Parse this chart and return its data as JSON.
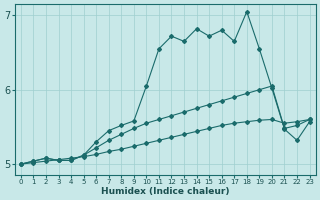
{
  "xlabel": "Humidex (Indice chaleur)",
  "bg_color": "#c8e8e8",
  "grid_color": "#9fcfcf",
  "line_color": "#1a6b6b",
  "xlim": [
    -0.5,
    23.5
  ],
  "ylim": [
    4.85,
    7.15
  ],
  "yticks": [
    5,
    6,
    7
  ],
  "xticks": [
    0,
    1,
    2,
    3,
    4,
    5,
    6,
    7,
    8,
    9,
    10,
    11,
    12,
    13,
    14,
    15,
    16,
    17,
    18,
    19,
    20,
    21,
    22,
    23
  ],
  "line1_x": [
    0,
    1,
    2,
    3,
    4,
    5,
    6,
    7,
    8,
    9,
    10,
    11,
    12,
    13,
    14,
    15,
    16,
    17,
    18,
    19,
    20,
    21,
    22,
    23
  ],
  "line1_y": [
    5.0,
    5.02,
    5.04,
    5.06,
    5.08,
    5.1,
    5.13,
    5.17,
    5.2,
    5.24,
    5.28,
    5.32,
    5.36,
    5.4,
    5.44,
    5.48,
    5.52,
    5.55,
    5.57,
    5.59,
    5.6,
    5.55,
    5.57,
    5.6
  ],
  "line2_x": [
    0,
    1,
    2,
    3,
    4,
    5,
    6,
    7,
    8,
    9,
    10,
    11,
    12,
    13,
    14,
    15,
    16,
    17,
    18,
    19,
    20,
    21,
    22,
    23
  ],
  "line2_y": [
    5.0,
    5.04,
    5.08,
    5.05,
    5.05,
    5.12,
    5.22,
    5.32,
    5.4,
    5.48,
    5.55,
    5.6,
    5.65,
    5.7,
    5.75,
    5.8,
    5.85,
    5.9,
    5.95,
    6.0,
    6.05,
    5.48,
    5.52,
    5.6
  ],
  "line3_x": [
    0,
    1,
    2,
    3,
    4,
    5,
    6,
    7,
    8,
    9,
    10,
    11,
    12,
    13,
    14,
    15,
    16,
    17,
    18,
    19,
    20,
    21,
    22,
    23
  ],
  "line3_y": [
    5.0,
    5.04,
    5.08,
    5.05,
    5.05,
    5.12,
    5.3,
    5.45,
    5.52,
    5.58,
    6.05,
    6.55,
    6.72,
    6.65,
    6.82,
    6.72,
    6.8,
    6.65,
    7.05,
    6.55,
    6.02,
    5.47,
    5.32,
    5.57
  ]
}
